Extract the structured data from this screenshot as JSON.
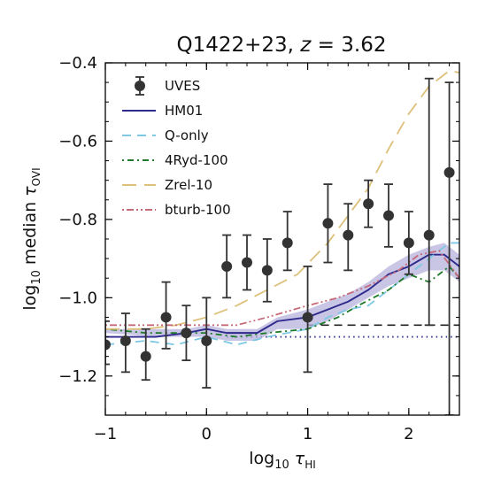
{
  "chart_data": {
    "type": "line",
    "title_main": "Q1422+23, ",
    "title_z": "z",
    "title_rest": " = 3.62",
    "xlabel_pre": "log",
    "xlabel_sub": "10",
    "xlabel_tau": " τ",
    "xlabel_tau_sub": "HI",
    "ylabel_pre": "log",
    "ylabel_sub": "10",
    "ylabel_mid": " median ",
    "ylabel_tau": "τ",
    "ylabel_tau_sub": "OVI",
    "xlim": [
      -1,
      2.5
    ],
    "ylim": [
      -1.3,
      -0.4
    ],
    "x_ticks": [
      -1,
      0,
      1,
      2
    ],
    "x_tick_labels": [
      "−1",
      "0",
      "1",
      "2"
    ],
    "y_ticks": [
      -1.2,
      -1.0,
      -0.8,
      -0.6,
      -0.4
    ],
    "y_tick_labels": [
      "−1.2",
      "−1.0",
      "−0.8",
      "−0.6",
      "−0.4"
    ],
    "legend_position": "upper-left",
    "reference_lines": [
      {
        "style": "dashed",
        "color": "#222222",
        "y": -1.07,
        "x_from": 1.0
      },
      {
        "style": "dotted",
        "color": "#2b2b8c",
        "y": -1.1,
        "x_from": 0.2
      }
    ],
    "series": [
      {
        "name": "UVES",
        "kind": "errorbar",
        "color": "#333333",
        "x": [
          -1.0,
          -0.8,
          -0.6,
          -0.4,
          -0.2,
          0.0,
          0.2,
          0.4,
          0.6,
          0.8,
          1.0,
          1.2,
          1.4,
          1.6,
          1.8,
          2.0,
          2.2,
          2.4
        ],
        "y": [
          -1.12,
          -1.11,
          -1.15,
          -1.05,
          -1.09,
          -1.11,
          -0.92,
          -0.91,
          -0.93,
          -0.86,
          -1.05,
          -0.81,
          -0.84,
          -0.76,
          -0.79,
          -0.86,
          -0.84,
          -0.68
        ],
        "err_low": [
          -1.17,
          -1.19,
          -1.21,
          -1.13,
          -1.16,
          -1.23,
          -1.0,
          -0.98,
          -1.01,
          -0.93,
          -1.19,
          -0.91,
          -0.93,
          -0.82,
          -0.87,
          -0.94,
          -1.07,
          -1.3
        ],
        "err_high": [
          -1.06,
          -1.04,
          -1.08,
          -0.96,
          -1.02,
          -1.0,
          -0.84,
          -0.84,
          -0.85,
          -0.78,
          -0.92,
          -0.71,
          -0.76,
          -0.7,
          -0.71,
          -0.78,
          -0.44,
          -0.45
        ]
      },
      {
        "name": "HM01",
        "kind": "line",
        "color": "#2e2a8c",
        "dash": "",
        "x": [
          -1.0,
          -0.5,
          -0.2,
          0.0,
          0.2,
          0.5,
          0.7,
          1.0,
          1.2,
          1.4,
          1.6,
          1.8,
          2.0,
          2.2,
          2.35,
          2.5
        ],
        "y": [
          -1.1,
          -1.1,
          -1.09,
          -1.08,
          -1.09,
          -1.09,
          -1.06,
          -1.05,
          -1.03,
          -1.01,
          -0.98,
          -0.94,
          -0.92,
          -0.89,
          -0.89,
          -0.92
        ],
        "band_low": [
          -1.09,
          -1.1,
          -1.1,
          -1.1,
          -1.11,
          -1.11,
          -1.08,
          -1.08,
          -1.06,
          -1.03,
          -1.0,
          -0.97,
          -0.95,
          -0.93,
          -0.93,
          -0.96
        ],
        "band_high": [
          -1.08,
          -1.08,
          -1.08,
          -1.07,
          -1.08,
          -1.08,
          -1.05,
          -1.03,
          -1.01,
          -0.99,
          -0.96,
          -0.92,
          -0.89,
          -0.87,
          -0.86,
          -0.89
        ]
      },
      {
        "name": "Q-only",
        "kind": "line",
        "color": "#7ec8e3",
        "dash": "10,7",
        "x": [
          -1.0,
          -0.6,
          -0.3,
          0.0,
          0.3,
          0.6,
          1.0,
          1.2,
          1.4,
          1.6,
          1.8,
          2.0,
          2.2,
          2.4,
          2.5
        ],
        "y": [
          -1.12,
          -1.11,
          -1.12,
          -1.1,
          -1.12,
          -1.1,
          -1.08,
          -1.05,
          -1.03,
          -1.02,
          -0.98,
          -0.94,
          -0.9,
          -0.86,
          -0.86
        ]
      },
      {
        "name": "4Ryd-100",
        "kind": "line",
        "color": "#1f7a2a",
        "dash": "2,4,7,4",
        "x": [
          -1.0,
          -0.6,
          -0.3,
          0.0,
          0.3,
          0.6,
          1.0,
          1.3,
          1.5,
          1.8,
          2.0,
          2.2,
          2.4,
          2.5
        ],
        "y": [
          -1.08,
          -1.09,
          -1.09,
          -1.09,
          -1.1,
          -1.09,
          -1.08,
          -1.05,
          -1.02,
          -0.98,
          -0.94,
          -0.96,
          -0.92,
          -0.95
        ]
      },
      {
        "name": "Zrel-10",
        "kind": "line",
        "color": "#ddc07a",
        "dash": "16,9",
        "x": [
          -1.0,
          -0.6,
          -0.3,
          0.0,
          0.3,
          0.6,
          0.9,
          1.2,
          1.4,
          1.6,
          1.8,
          2.0,
          2.2,
          2.4,
          2.5
        ],
        "y": [
          -1.08,
          -1.08,
          -1.07,
          -1.05,
          -1.02,
          -0.98,
          -0.94,
          -0.86,
          -0.79,
          -0.72,
          -0.62,
          -0.53,
          -0.46,
          -0.42,
          -0.425
        ]
      },
      {
        "name": "bturb-100",
        "kind": "line",
        "color": "#c66a7a",
        "dash": "2,3,8,3,2,3",
        "x": [
          -1.0,
          -0.6,
          -0.3,
          0.0,
          0.3,
          0.6,
          1.0,
          1.3,
          1.6,
          1.9,
          2.1,
          2.3,
          2.5
        ],
        "y": [
          -1.07,
          -1.07,
          -1.07,
          -1.07,
          -1.07,
          -1.05,
          -1.02,
          -1.0,
          -0.97,
          -0.93,
          -0.89,
          -0.88,
          -0.95
        ]
      }
    ]
  }
}
